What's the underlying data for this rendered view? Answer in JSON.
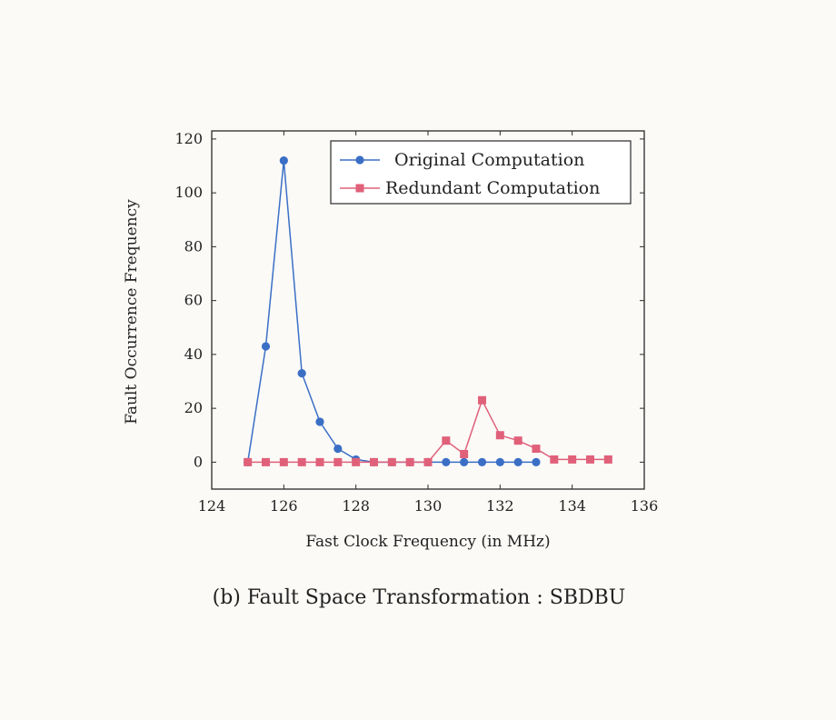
{
  "caption": "(b) Fault Space Transformation : SBDBU",
  "chart_data": {
    "type": "line",
    "xlabel": "Fast Clock Frequency (in MHz)",
    "ylabel": "Fault Occurrence Frequency",
    "xlim": [
      124,
      136
    ],
    "ylim": [
      -10,
      123
    ],
    "xticks": [
      124,
      126,
      128,
      130,
      132,
      134,
      136
    ],
    "yticks": [
      0,
      20,
      40,
      60,
      80,
      100,
      120
    ],
    "grid": false,
    "legend_position": "top-right",
    "series": [
      {
        "name": "Original Computation",
        "color": "#3b6fc6",
        "marker": "circle",
        "x": [
          125,
          125.5,
          126,
          126.5,
          127,
          127.5,
          128,
          128.5,
          129,
          129.5,
          130,
          130.5,
          131,
          131.5,
          132,
          132.5,
          133
        ],
        "y": [
          0,
          43,
          112,
          33,
          15,
          5,
          1,
          0,
          0,
          0,
          0,
          0,
          0,
          0,
          0,
          0,
          0
        ]
      },
      {
        "name": "Redundant Computation",
        "color": "#e0607a",
        "marker": "square",
        "x": [
          125,
          125.5,
          126,
          126.5,
          127,
          127.5,
          128,
          128.5,
          129,
          129.5,
          130,
          130.5,
          131,
          131.5,
          132,
          132.5,
          133,
          133.5,
          134,
          134.5,
          135
        ],
        "y": [
          0,
          0,
          0,
          0,
          0,
          0,
          0,
          0,
          0,
          0,
          0,
          8,
          3,
          23,
          10,
          8,
          5,
          1,
          1,
          1,
          1
        ]
      }
    ]
  }
}
